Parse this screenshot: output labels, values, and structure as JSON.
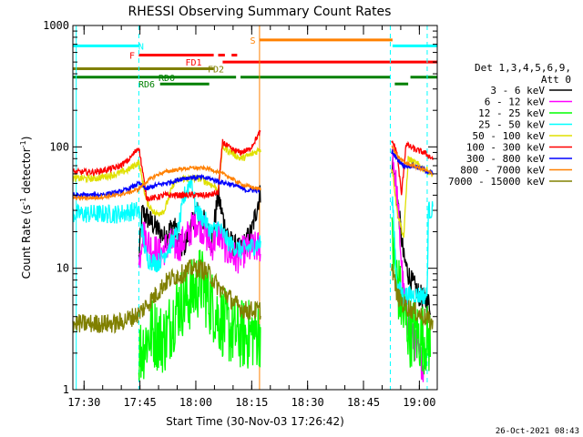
{
  "chart_data": {
    "type": "line",
    "title": "RHESSI Observing Summary Count Rates",
    "xlabel": "Start Time (30-Nov-03 17:26:42)",
    "ylabel_main": "Count Rate (s",
    "ylabel_sup1": "-1",
    "ylabel_mid": " detector",
    "ylabel_sup2": "-1",
    "ylabel_end": ")",
    "yscale": "log",
    "ylim": [
      1,
      1000
    ],
    "xlim_minutes": [
      17.45,
      19.08
    ],
    "x_ticks": [
      {
        "value": 17.5,
        "label": "17:30"
      },
      {
        "value": 17.75,
        "label": "17:45"
      },
      {
        "value": 18.0,
        "label": "18:00"
      },
      {
        "value": 18.25,
        "label": "18:15"
      },
      {
        "value": 18.5,
        "label": "18:30"
      },
      {
        "value": 18.75,
        "label": "18:45"
      },
      {
        "value": 19.0,
        "label": "19:00"
      }
    ],
    "y_ticks": [
      {
        "value": 1,
        "label": "1"
      },
      {
        "value": 10,
        "label": "10"
      },
      {
        "value": 100,
        "label": "100"
      },
      {
        "value": 1000,
        "label": "1000"
      }
    ],
    "legend_header": [
      "Det 1,3,4,5,6,9,",
      "Att 0"
    ],
    "legend_placement": "right",
    "timestamp": "26-Oct-2021 08:43",
    "flag_bars": [
      {
        "label": "N",
        "color": "#00ffff",
        "level": 680,
        "segments": [
          [
            17.45,
            17.745
          ],
          [
            18.88,
            19.08
          ]
        ],
        "label_at": 17.755
      },
      {
        "label": "S",
        "color": "#ff8000",
        "level": 760,
        "segments": [
          [
            18.285,
            18.88
          ]
        ],
        "label_at": 18.255
      },
      {
        "label": "F",
        "color": "#ff0000",
        "level": 570,
        "segments": [
          [
            17.745,
            18.08
          ],
          [
            18.1,
            18.13
          ],
          [
            18.16,
            18.185
          ]
        ],
        "label_at": 17.715
      },
      {
        "label": "FD1",
        "color": "#ff0000",
        "level": 500,
        "segments": [
          [
            18.12,
            19.08
          ]
        ],
        "label_at": 17.99
      },
      {
        "label": "FD2",
        "color": "#808000",
        "level": 440,
        "segments": [
          [
            17.45,
            18.08
          ]
        ],
        "label_at": 18.09
      },
      {
        "label": "RD0",
        "color": "#008000",
        "level": 375,
        "segments": [
          [
            17.45,
            18.18
          ],
          [
            18.2,
            18.87
          ],
          [
            18.96,
            19.08
          ]
        ],
        "label_at": 17.87
      },
      {
        "label": "RD6",
        "color": "#008000",
        "level": 330,
        "segments": [
          [
            17.84,
            18.06
          ],
          [
            18.89,
            18.95
          ]
        ],
        "label_at": 17.78
      }
    ],
    "vlines": [
      {
        "x": 17.465,
        "color": "#00ffff",
        "style": "solid"
      },
      {
        "x": 17.745,
        "color": "#00ffff",
        "style": "dashed"
      },
      {
        "x": 18.285,
        "color": "#ff8000",
        "style": "solid"
      },
      {
        "x": 18.87,
        "color": "#00ffff",
        "style": "dashed"
      },
      {
        "x": 19.035,
        "color": "#00ffff",
        "style": "dashed"
      }
    ],
    "series": [
      {
        "name": "3 - 6 keV",
        "color": "#000000",
        "noise": 0.1,
        "points": [
          [
            17.745,
            12
          ],
          [
            17.76,
            29
          ],
          [
            17.8,
            24
          ],
          [
            17.86,
            18
          ],
          [
            17.9,
            23
          ],
          [
            17.94,
            14
          ],
          [
            17.98,
            22
          ],
          [
            18.0,
            30
          ],
          [
            18.04,
            24
          ],
          [
            18.07,
            16
          ],
          [
            18.1,
            40
          ],
          [
            18.13,
            22
          ],
          [
            18.16,
            16
          ],
          [
            18.2,
            14
          ],
          [
            18.25,
            20
          ],
          [
            18.285,
            40
          ],
          [
            18.88,
            75
          ],
          [
            18.9,
            40
          ],
          [
            18.93,
            12
          ],
          [
            18.96,
            8
          ],
          [
            19.0,
            6
          ],
          [
            19.05,
            5
          ]
        ]
      },
      {
        "name": "6 - 12 keV",
        "color": "#ff00ff",
        "noise": 0.14,
        "points": [
          [
            17.745,
            10
          ],
          [
            17.76,
            20
          ],
          [
            17.8,
            15
          ],
          [
            17.84,
            13
          ],
          [
            17.88,
            16
          ],
          [
            17.92,
            15
          ],
          [
            17.96,
            18
          ],
          [
            18.0,
            25
          ],
          [
            18.04,
            20
          ],
          [
            18.07,
            15
          ],
          [
            18.1,
            20
          ],
          [
            18.14,
            14
          ],
          [
            18.18,
            12
          ],
          [
            18.22,
            14
          ],
          [
            18.285,
            15
          ],
          [
            18.88,
            90
          ],
          [
            18.9,
            40
          ],
          [
            18.93,
            6
          ],
          [
            18.96,
            3
          ],
          [
            19.02,
            1.5
          ]
        ]
      },
      {
        "name": "12 - 25 keV",
        "color": "#00ff00",
        "noise": 0.3,
        "points": [
          [
            17.745,
            2
          ],
          [
            17.8,
            3
          ],
          [
            17.86,
            2.6
          ],
          [
            17.92,
            5
          ],
          [
            17.98,
            6
          ],
          [
            18.02,
            8
          ],
          [
            18.05,
            6
          ],
          [
            18.1,
            4
          ],
          [
            18.16,
            3
          ],
          [
            18.22,
            2.8
          ],
          [
            18.285,
            3
          ],
          [
            18.88,
            15
          ],
          [
            18.9,
            8
          ],
          [
            18.93,
            4
          ],
          [
            18.96,
            3
          ],
          [
            19.05,
            2.5
          ]
        ]
      },
      {
        "name": "25 - 50 keV",
        "color": "#00ffff",
        "noise": 0.08,
        "points": [
          [
            17.45,
            28
          ],
          [
            17.55,
            28
          ],
          [
            17.65,
            28
          ],
          [
            17.745,
            30
          ],
          [
            17.78,
            12
          ],
          [
            17.83,
            11
          ],
          [
            17.88,
            15
          ],
          [
            17.92,
            20
          ],
          [
            17.95,
            40
          ],
          [
            17.98,
            55
          ],
          [
            18.0,
            30
          ],
          [
            18.04,
            25
          ],
          [
            18.07,
            20
          ],
          [
            18.1,
            22
          ],
          [
            18.15,
            16
          ],
          [
            18.2,
            14
          ],
          [
            18.285,
            16
          ],
          [
            18.88,
            35
          ],
          [
            18.9,
            7
          ],
          [
            18.93,
            6
          ],
          [
            18.96,
            6
          ],
          [
            19.0,
            6
          ],
          [
            19.035,
            6
          ],
          [
            19.04,
            30
          ],
          [
            19.06,
            30
          ]
        ]
      },
      {
        "name": "50 - 100 keV",
        "color": "#e0e000",
        "noise": 0.03,
        "points": [
          [
            17.45,
            55
          ],
          [
            17.55,
            55
          ],
          [
            17.65,
            60
          ],
          [
            17.7,
            65
          ],
          [
            17.745,
            75
          ],
          [
            17.78,
            35
          ],
          [
            17.82,
            28
          ],
          [
            17.86,
            30
          ],
          [
            17.9,
            50
          ],
          [
            17.94,
            55
          ],
          [
            17.98,
            55
          ],
          [
            18.02,
            55
          ],
          [
            18.06,
            50
          ],
          [
            18.1,
            45
          ],
          [
            18.12,
            100
          ],
          [
            18.16,
            90
          ],
          [
            18.2,
            80
          ],
          [
            18.24,
            85
          ],
          [
            18.285,
            95
          ],
          [
            18.88,
            65
          ],
          [
            18.9,
            30
          ],
          [
            18.93,
            18
          ],
          [
            18.95,
            80
          ],
          [
            19.0,
            70
          ],
          [
            19.06,
            60
          ]
        ]
      },
      {
        "name": "100 - 300 keV",
        "color": "#ff0000",
        "noise": 0.025,
        "points": [
          [
            17.45,
            62
          ],
          [
            17.55,
            62
          ],
          [
            17.65,
            68
          ],
          [
            17.7,
            78
          ],
          [
            17.745,
            100
          ],
          [
            17.78,
            38
          ],
          [
            17.82,
            38
          ],
          [
            17.86,
            40
          ],
          [
            17.9,
            40
          ],
          [
            17.94,
            40
          ],
          [
            17.98,
            40
          ],
          [
            18.02,
            40
          ],
          [
            18.06,
            40
          ],
          [
            18.1,
            42
          ],
          [
            18.12,
            110
          ],
          [
            18.16,
            95
          ],
          [
            18.2,
            90
          ],
          [
            18.24,
            95
          ],
          [
            18.285,
            130
          ],
          [
            18.88,
            110
          ],
          [
            18.9,
            90
          ],
          [
            18.92,
            40
          ],
          [
            18.94,
            105
          ],
          [
            18.98,
            95
          ],
          [
            19.02,
            90
          ],
          [
            19.06,
            80
          ]
        ]
      },
      {
        "name": "300 - 800 keV",
        "color": "#0000ff",
        "noise": 0.02,
        "points": [
          [
            17.45,
            40
          ],
          [
            17.55,
            40
          ],
          [
            17.65,
            42
          ],
          [
            17.7,
            45
          ],
          [
            17.745,
            50
          ],
          [
            17.78,
            45
          ],
          [
            17.82,
            48
          ],
          [
            17.86,
            50
          ],
          [
            17.9,
            52
          ],
          [
            17.94,
            55
          ],
          [
            17.98,
            56
          ],
          [
            18.02,
            56
          ],
          [
            18.06,
            55
          ],
          [
            18.1,
            52
          ],
          [
            18.14,
            50
          ],
          [
            18.18,
            48
          ],
          [
            18.22,
            44
          ],
          [
            18.285,
            44
          ],
          [
            18.88,
            90
          ],
          [
            18.9,
            80
          ],
          [
            18.93,
            70
          ],
          [
            18.97,
            70
          ],
          [
            19.02,
            65
          ],
          [
            19.06,
            60
          ]
        ]
      },
      {
        "name": "800 - 7000 keV",
        "color": "#ff8000",
        "noise": 0.015,
        "points": [
          [
            17.45,
            38
          ],
          [
            17.55,
            38
          ],
          [
            17.65,
            40
          ],
          [
            17.7,
            42
          ],
          [
            17.745,
            45
          ],
          [
            17.78,
            52
          ],
          [
            17.82,
            58
          ],
          [
            17.86,
            62
          ],
          [
            17.9,
            64
          ],
          [
            17.94,
            66
          ],
          [
            17.98,
            67
          ],
          [
            18.02,
            67
          ],
          [
            18.06,
            66
          ],
          [
            18.1,
            62
          ],
          [
            18.14,
            58
          ],
          [
            18.18,
            52
          ],
          [
            18.22,
            48
          ],
          [
            18.285,
            45
          ],
          [
            18.88,
            100
          ],
          [
            18.9,
            85
          ],
          [
            18.93,
            75
          ],
          [
            18.97,
            70
          ],
          [
            19.02,
            65
          ],
          [
            19.06,
            60
          ]
        ]
      },
      {
        "name": "7000 - 15000 keV",
        "color": "#808000",
        "noise": 0.08,
        "points": [
          [
            17.45,
            3.5
          ],
          [
            17.55,
            3.5
          ],
          [
            17.65,
            3.5
          ],
          [
            17.745,
            4.2
          ],
          [
            17.78,
            5
          ],
          [
            17.82,
            6
          ],
          [
            17.86,
            7.5
          ],
          [
            17.9,
            8.5
          ],
          [
            17.94,
            9
          ],
          [
            17.98,
            10
          ],
          [
            18.02,
            10
          ],
          [
            18.06,
            9
          ],
          [
            18.1,
            7
          ],
          [
            18.14,
            6
          ],
          [
            18.18,
            5
          ],
          [
            18.22,
            4.5
          ],
          [
            18.285,
            4.5
          ],
          [
            18.88,
            10
          ],
          [
            18.9,
            6
          ],
          [
            18.93,
            5
          ],
          [
            18.97,
            4.5
          ],
          [
            19.02,
            4
          ],
          [
            19.06,
            3.5
          ]
        ]
      }
    ]
  }
}
